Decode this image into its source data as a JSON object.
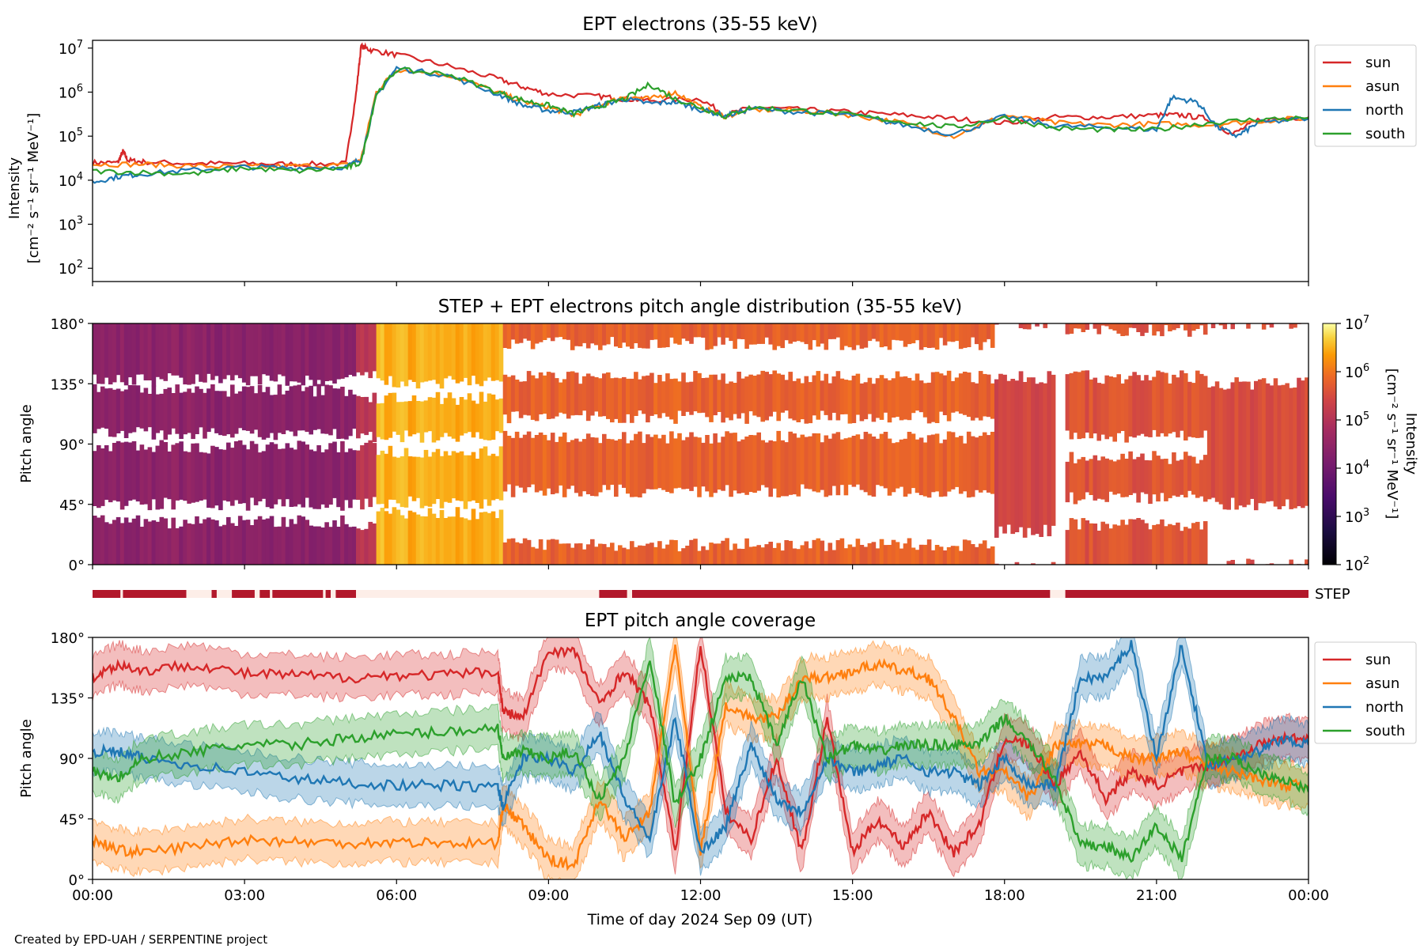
{
  "figure": {
    "footer": "Created by EPD-UAH / SERPENTINE project",
    "xlabel": "Time of day 2024 Sep 09 (UT)",
    "x_tick_labels": [
      "00:00",
      "03:00",
      "06:00",
      "09:00",
      "12:00",
      "15:00",
      "18:00",
      "21:00",
      "00:00"
    ]
  },
  "colors": {
    "sun": "#d62728",
    "asun": "#ff7f0e",
    "north": "#1f77b4",
    "south": "#2ca02c",
    "step_bar": "#b2182b",
    "step_gap": "#fdeee8"
  },
  "chart_data": [
    {
      "type": "line",
      "title": "EPT electrons (35-55 keV)",
      "ylabel_line1": "Intensity",
      "ylabel_line2": "[cm⁻² s⁻¹ sr⁻¹ MeV⁻¹]",
      "x_unit": "hours",
      "xlim": [
        0,
        24
      ],
      "yscale": "log",
      "ylim": [
        50,
        15000000
      ],
      "y_tick_labels": [
        {
          "value": 100,
          "base": "10",
          "exp": "2"
        },
        {
          "value": 1000,
          "base": "10",
          "exp": "3"
        },
        {
          "value": 10000,
          "base": "10",
          "exp": "4"
        },
        {
          "value": 100000,
          "base": "10",
          "exp": "5"
        },
        {
          "value": 1000000,
          "base": "10",
          "exp": "6"
        },
        {
          "value": 10000000,
          "base": "10",
          "exp": "7"
        }
      ],
      "legend": {
        "position": "right-outside-top",
        "entries": [
          "sun",
          "asun",
          "north",
          "south"
        ]
      },
      "series": [
        {
          "name": "sun",
          "x": [
            0,
            0.5,
            0.6,
            0.7,
            1,
            2,
            3,
            4,
            5,
            5.2,
            5.3,
            5.5,
            6,
            7,
            8,
            8.5,
            9,
            10,
            10.5,
            11,
            12,
            12.5,
            13,
            14,
            15,
            16,
            17,
            18,
            19,
            20,
            21,
            21.5,
            22,
            22.5,
            23,
            24
          ],
          "y": [
            25000,
            25000,
            45000,
            28000,
            26000,
            24000,
            24000,
            23000,
            24000,
            900000,
            11000000,
            9000000,
            7000000,
            4000000,
            2000000,
            1300000,
            900000,
            800000,
            700000,
            650000,
            700000,
            300000,
            450000,
            400000,
            350000,
            300000,
            250000,
            200000,
            270000,
            270000,
            300000,
            300000,
            250000,
            110000,
            230000,
            270000
          ]
        },
        {
          "name": "asun",
          "x": [
            0,
            1,
            2,
            3,
            4,
            5,
            5.3,
            5.6,
            6,
            7,
            8,
            8.5,
            9,
            9.5,
            10,
            10.5,
            11,
            11.5,
            12,
            12.5,
            13,
            14,
            15,
            16,
            17,
            18,
            19,
            20,
            21,
            22,
            23,
            24
          ],
          "y": [
            23000,
            23000,
            21000,
            20000,
            21000,
            22000,
            30000,
            1000000,
            3300000,
            2500000,
            1000000,
            600000,
            450000,
            300000,
            500000,
            800000,
            700000,
            1000000,
            450000,
            280000,
            400000,
            380000,
            300000,
            200000,
            100000,
            300000,
            200000,
            180000,
            190000,
            180000,
            220000,
            260000
          ]
        },
        {
          "name": "north",
          "x": [
            0,
            0.5,
            1,
            2,
            3,
            4,
            5,
            5.3,
            5.6,
            6,
            7,
            8,
            8.5,
            9,
            9.5,
            10,
            10.5,
            11,
            11.5,
            12,
            12.5,
            13,
            14,
            15,
            16,
            17,
            18,
            19,
            20,
            21,
            21.3,
            21.8,
            22.2,
            22.6,
            23,
            24
          ],
          "y": [
            9000,
            12000,
            14000,
            17000,
            20000,
            19000,
            20000,
            30000,
            800000,
            3500000,
            2400000,
            900000,
            500000,
            380000,
            350000,
            500000,
            700000,
            550000,
            600000,
            400000,
            290000,
            420000,
            350000,
            300000,
            180000,
            110000,
            280000,
            170000,
            160000,
            140000,
            750000,
            600000,
            160000,
            100000,
            200000,
            250000
          ]
        },
        {
          "name": "south",
          "x": [
            0,
            1,
            2,
            3,
            4,
            5,
            5.3,
            5.6,
            6,
            7,
            8,
            8.5,
            9,
            9.5,
            10,
            10.5,
            11,
            11.5,
            12,
            12.5,
            13,
            14,
            15,
            16,
            17,
            18,
            19,
            20,
            21,
            22,
            23,
            24
          ],
          "y": [
            16000,
            15000,
            14000,
            19000,
            16000,
            19000,
            25000,
            900000,
            3200000,
            2600000,
            1000000,
            650000,
            500000,
            320000,
            480000,
            700000,
            1500000,
            700000,
            450000,
            280000,
            450000,
            380000,
            300000,
            210000,
            160000,
            260000,
            150000,
            140000,
            140000,
            200000,
            240000,
            260000
          ]
        }
      ]
    },
    {
      "type": "heatmap",
      "title": "STEP + EPT electrons pitch angle distribution (35-55 keV)",
      "ylabel": "Pitch angle",
      "x_unit": "hours",
      "xlim": [
        0,
        24
      ],
      "ylim": [
        0,
        180
      ],
      "y_tick_labels": [
        "0°",
        "45°",
        "90°",
        "135°",
        "180°"
      ],
      "colorbar": {
        "scale": "log",
        "range": [
          100,
          10000000
        ],
        "label_line1": "Intensity",
        "label_line2": "[cm⁻² s⁻¹ sr⁻¹ MeV⁻¹]",
        "tick_labels": [
          {
            "base": "10",
            "exp": "2"
          },
          {
            "base": "10",
            "exp": "3"
          },
          {
            "base": "10",
            "exp": "4"
          },
          {
            "base": "10",
            "exp": "5"
          },
          {
            "base": "10",
            "exp": "6"
          },
          {
            "base": "10",
            "exp": "7"
          }
        ],
        "colormap": "inferno"
      },
      "segments": [
        {
          "from": 0,
          "to": 5.2,
          "log_intensity": 4.4,
          "gaps": [
            [
              32,
              45
            ],
            [
              88,
              98
            ],
            [
              130,
              138
            ]
          ]
        },
        {
          "from": 5.2,
          "to": 5.6,
          "log_intensity": 5.0,
          "gaps": [
            [
              30,
              46
            ],
            [
              90,
              96
            ],
            [
              125,
              140
            ]
          ]
        },
        {
          "from": 5.6,
          "to": 8.1,
          "log_intensity": 6.5,
          "gaps": [
            [
              38,
              46
            ],
            [
              84,
              96
            ],
            [
              124,
              136
            ]
          ]
        },
        {
          "from": 8.1,
          "to": 17.8,
          "log_intensity": 5.8,
          "gaps": [
            [
              15,
              55
            ],
            [
              95,
              110
            ],
            [
              140,
              165
            ]
          ]
        },
        {
          "from": 17.8,
          "to": 19.0,
          "log_intensity": 5.4,
          "gaps": [
            [
              0,
              25
            ],
            [
              140,
              180
            ]
          ]
        },
        {
          "from": 19.0,
          "to": 19.2,
          "log_intensity": null,
          "gaps": [
            [
              0,
              180
            ]
          ]
        },
        {
          "from": 19.2,
          "to": 22.0,
          "log_intensity": 5.6,
          "gaps": [
            [
              30,
              50
            ],
            [
              80,
              96
            ],
            [
              140,
              175
            ]
          ]
        },
        {
          "from": 22.0,
          "to": 24,
          "log_intensity": 5.5,
          "gaps": [
            [
              0,
              45
            ],
            [
              135,
              180
            ]
          ]
        }
      ]
    },
    {
      "type": "timeline",
      "label": "STEP",
      "x_unit": "hours",
      "available_intervals": [
        [
          0,
          0.55
        ],
        [
          0.6,
          1.85
        ],
        [
          2.35,
          2.45
        ],
        [
          2.75,
          3.2
        ],
        [
          3.3,
          3.5
        ],
        [
          3.55,
          4.55
        ],
        [
          4.6,
          4.7
        ],
        [
          4.8,
          5.2
        ],
        [
          10.0,
          10.55
        ],
        [
          10.65,
          18.9
        ],
        [
          19.2,
          24
        ]
      ]
    },
    {
      "type": "line",
      "title": "EPT pitch angle coverage",
      "ylabel": "Pitch angle",
      "x_unit": "hours",
      "xlim": [
        0,
        24
      ],
      "ylim": [
        0,
        180
      ],
      "y_tick_labels": [
        "0°",
        "45°",
        "90°",
        "135°",
        "180°"
      ],
      "band_half_width": 15,
      "legend": {
        "position": "right-outside-top",
        "entries": [
          "sun",
          "asun",
          "north",
          "south"
        ]
      },
      "series": [
        {
          "name": "sun",
          "x": [
            0,
            0.5,
            1,
            2,
            3,
            4,
            5,
            6,
            7,
            8,
            8.1,
            8.5,
            9,
            9.5,
            10,
            10.5,
            11,
            11.5,
            12,
            12.5,
            13,
            13.5,
            14,
            14.5,
            15,
            15.5,
            16,
            16.5,
            17,
            17.5,
            18,
            18.5,
            19,
            19.5,
            20,
            20.5,
            21,
            21.5,
            22,
            22.5,
            23,
            23.5,
            24
          ],
          "y": [
            150,
            160,
            155,
            160,
            153,
            152,
            150,
            152,
            152,
            155,
            125,
            120,
            170,
            170,
            130,
            155,
            130,
            20,
            175,
            50,
            30,
            90,
            20,
            120,
            20,
            45,
            25,
            50,
            20,
            40,
            105,
            100,
            70,
            95,
            60,
            80,
            70,
            80,
            85,
            90,
            100,
            105,
            105
          ]
        },
        {
          "name": "asun",
          "x": [
            0,
            0.5,
            1,
            2,
            3,
            4,
            5,
            6,
            7,
            8,
            8.1,
            8.5,
            9,
            9.5,
            10,
            10.5,
            11,
            11.5,
            12,
            12.5,
            13,
            13.5,
            14,
            14.5,
            15,
            15.5,
            16,
            16.5,
            17,
            17.5,
            18,
            18.5,
            19,
            19.5,
            20,
            20.5,
            21,
            21.5,
            22,
            22.5,
            23,
            23.5,
            24
          ],
          "y": [
            30,
            22,
            20,
            25,
            30,
            28,
            27,
            28,
            27,
            27,
            55,
            40,
            15,
            10,
            60,
            30,
            50,
            175,
            20,
            130,
            120,
            120,
            150,
            150,
            155,
            160,
            155,
            150,
            120,
            80,
            80,
            60,
            100,
            100,
            100,
            90,
            90,
            95,
            85,
            80,
            75,
            70,
            70
          ]
        },
        {
          "name": "north",
          "x": [
            0,
            0.5,
            1,
            2,
            3,
            4,
            5,
            6,
            7,
            8,
            8.1,
            8.5,
            9,
            9.5,
            10,
            10.5,
            11,
            11.5,
            12,
            12.5,
            13,
            13.5,
            14,
            14.5,
            15,
            15.5,
            16,
            16.5,
            17,
            17.5,
            18,
            18.5,
            19,
            19.5,
            20,
            20.5,
            21,
            21.5,
            22,
            22.5,
            23,
            23.5,
            24
          ],
          "y": [
            95,
            95,
            90,
            85,
            80,
            75,
            72,
            70,
            70,
            68,
            55,
            90,
            90,
            80,
            110,
            60,
            30,
            120,
            20,
            40,
            100,
            60,
            50,
            90,
            80,
            85,
            90,
            80,
            80,
            70,
            90,
            70,
            70,
            150,
            150,
            175,
            90,
            175,
            85,
            90,
            95,
            105,
            100
          ]
        },
        {
          "name": "south",
          "x": [
            0,
            0.5,
            1,
            2,
            3,
            4,
            5,
            6,
            7,
            8,
            8.1,
            8.5,
            9,
            9.5,
            10,
            10.5,
            11,
            11.5,
            12,
            12.5,
            13,
            13.5,
            14,
            14.5,
            15,
            15.5,
            16,
            16.5,
            17,
            17.5,
            18,
            18.5,
            19,
            19.5,
            20,
            20.5,
            21,
            21.5,
            22,
            22.5,
            23,
            23.5,
            24
          ],
          "y": [
            80,
            75,
            90,
            95,
            100,
            100,
            105,
            108,
            110,
            113,
            90,
            95,
            90,
            95,
            60,
            90,
            165,
            55,
            90,
            150,
            150,
            100,
            150,
            90,
            100,
            95,
            100,
            100,
            100,
            100,
            120,
            100,
            75,
            25,
            25,
            15,
            40,
            15,
            90,
            90,
            80,
            75,
            65
          ]
        }
      ]
    }
  ]
}
